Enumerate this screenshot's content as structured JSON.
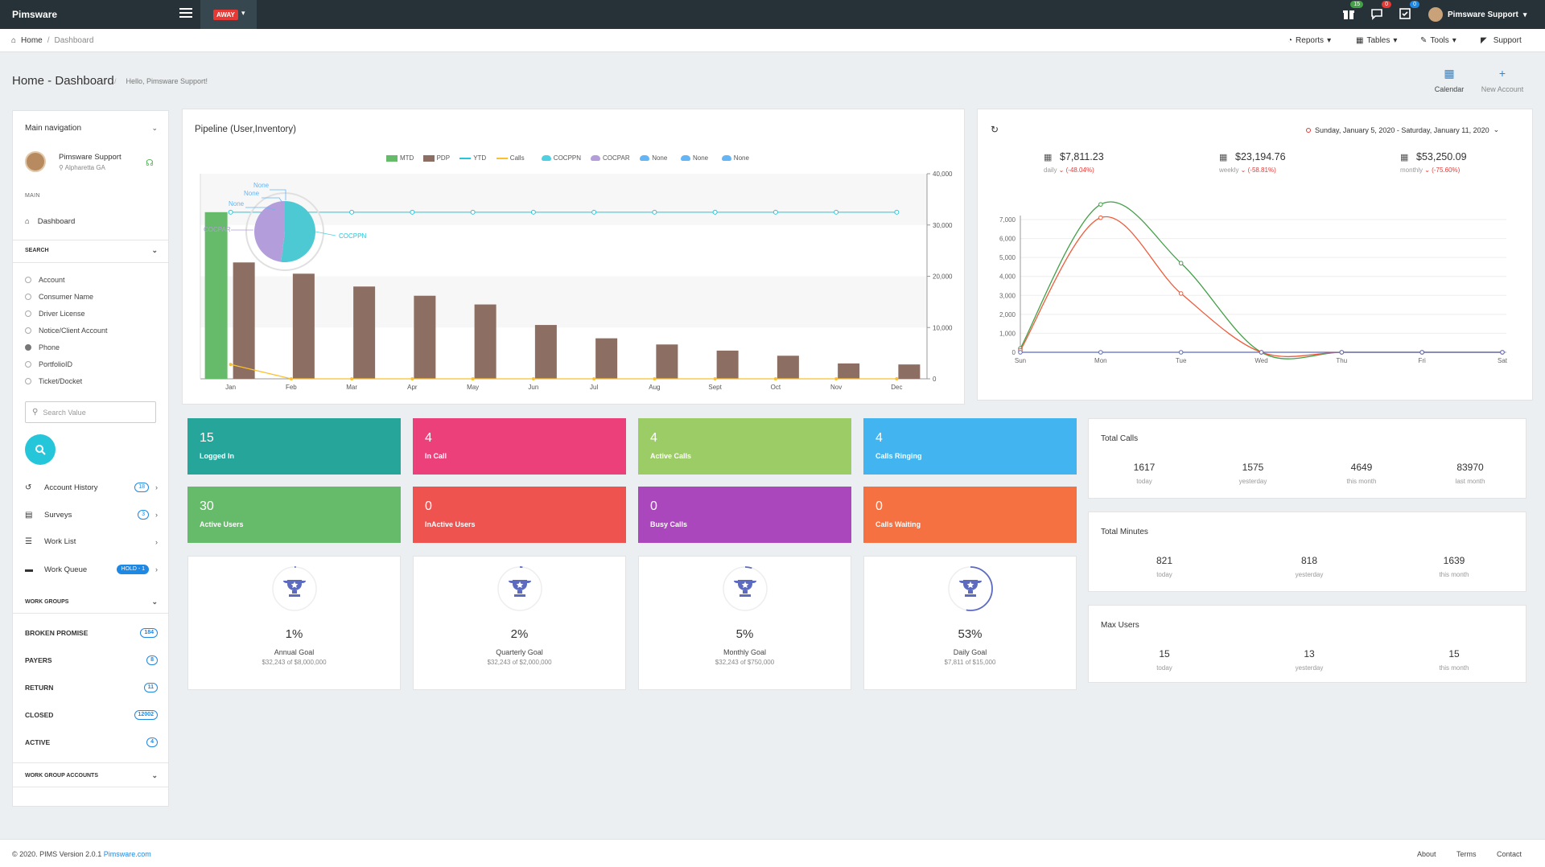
{
  "app": {
    "brand": "Pimsware",
    "status": "AWAY"
  },
  "topbar": {
    "notifications": [
      {
        "icon": "gift-icon",
        "count": "15",
        "color": "#43a047"
      },
      {
        "icon": "chat-icon",
        "count": "0",
        "color": "#e53935"
      },
      {
        "icon": "task-icon",
        "count": "0",
        "color": "#1e88e5"
      }
    ],
    "user": "Pimsware Support"
  },
  "breadcrumb": {
    "home": "Home",
    "current": "Dashboard"
  },
  "topmenu": {
    "reports": "Reports",
    "tables": "Tables",
    "tools": "Tools",
    "support": "Support"
  },
  "page": {
    "title_main": "Home",
    "title_sep": " - ",
    "title_sub": "Dashboard",
    "greeting": "Hello, Pimsware Support!",
    "calendar": "Calendar",
    "new_account": "New Account"
  },
  "sidebar": {
    "main_nav": "Main navigation",
    "user_name": "Pimsware Support",
    "user_location": "Alpharetta GA",
    "section_main": "MAIN",
    "dashboard": "Dashboard",
    "search": "SEARCH",
    "search_options": [
      "Account",
      "Consumer Name",
      "Driver License",
      "Notice/Client Account",
      "Phone",
      "PortfolioID",
      "Ticket/Docket"
    ],
    "selected_option": "Phone",
    "search_placeholder": "Search Value",
    "nav": [
      {
        "label": "Account History",
        "badge": "18",
        "icon": "history-icon"
      },
      {
        "label": "Surveys",
        "badge": "3",
        "icon": "clipboard-icon"
      },
      {
        "label": "Work List",
        "badge": "",
        "icon": "list-icon"
      },
      {
        "label": "Work Queue",
        "badge": "HOLD - 1",
        "icon": "folder-icon"
      }
    ],
    "work_groups": "WORK GROUPS",
    "groups": [
      {
        "label": "BROKEN PROMISE",
        "count": "184"
      },
      {
        "label": "PAYERS",
        "count": "8"
      },
      {
        "label": "RETURN",
        "count": "11"
      },
      {
        "label": "CLOSED",
        "count": "12002"
      },
      {
        "label": "ACTIVE",
        "count": "4"
      }
    ],
    "work_group_accounts": "WORK GROUP ACCOUNTS"
  },
  "pipeline": {
    "title": "Pipeline (User,Inventory)",
    "legend": [
      {
        "name": "MTD",
        "color": "#66bb6a",
        "shape": "rect"
      },
      {
        "name": "PDP",
        "color": "#8d6e63",
        "shape": "rect"
      },
      {
        "name": "YTD",
        "color": "#26c6da",
        "shape": "line"
      },
      {
        "name": "Calls",
        "color": "#fbc02d",
        "shape": "line"
      },
      {
        "name": "COCPPN",
        "color": "#4dd0e1",
        "shape": "blob"
      },
      {
        "name": "COCPAR",
        "color": "#b39ddb",
        "shape": "blob"
      },
      {
        "name": "None",
        "color": "#64b5f6",
        "shape": "blob"
      },
      {
        "name": "None",
        "color": "#64b5f6",
        "shape": "blob"
      },
      {
        "name": "None",
        "color": "#64b5f6",
        "shape": "blob"
      }
    ],
    "pie_labels": [
      "None",
      "None",
      "None",
      "COCPAR",
      "COCPPN"
    ]
  },
  "revenue": {
    "range": "Sunday, January 5, 2020 - Saturday, January 11, 2020",
    "items": [
      {
        "amount": "$7,811.23",
        "period": "daily",
        "change": "(-48.04%)"
      },
      {
        "amount": "$23,194.76",
        "period": "weekly",
        "change": "(-58.81%)"
      },
      {
        "amount": "$53,250.09",
        "period": "monthly",
        "change": "(-75.60%)"
      }
    ]
  },
  "tiles": [
    {
      "value": "15",
      "label": "Logged In",
      "color": "#26a69a"
    },
    {
      "value": "4",
      "label": "In Call",
      "color": "#ec407a"
    },
    {
      "value": "4",
      "label": "Active Calls",
      "color": "#9ccc65"
    },
    {
      "value": "4",
      "label": "Calls Ringing",
      "color": "#42b4f0"
    },
    {
      "value": "30",
      "label": "Active Users",
      "color": "#66bb6a"
    },
    {
      "value": "0",
      "label": "InActive Users",
      "color": "#ef5350"
    },
    {
      "value": "0",
      "label": "Busy Calls",
      "color": "#ab47bc"
    },
    {
      "value": "0",
      "label": "Calls Waiting",
      "color": "#f57142"
    }
  ],
  "goals": [
    {
      "pct": "1%",
      "fraction": 0.01,
      "label": "Annual Goal",
      "sub": "$32,243 of $8,000,000"
    },
    {
      "pct": "2%",
      "fraction": 0.02,
      "label": "Quarterly Goal",
      "sub": "$32,243 of $2,000,000"
    },
    {
      "pct": "5%",
      "fraction": 0.05,
      "label": "Monthly Goal",
      "sub": "$32,243 of $750,000"
    },
    {
      "pct": "53%",
      "fraction": 0.53,
      "label": "Daily Goal",
      "sub": "$7,811 of $15,000"
    }
  ],
  "stats": [
    {
      "title": "Total Calls",
      "cols": [
        {
          "v": "1617",
          "k": "today"
        },
        {
          "v": "1575",
          "k": "yesterday"
        },
        {
          "v": "4649",
          "k": "this month"
        },
        {
          "v": "83970",
          "k": "last month"
        }
      ]
    },
    {
      "title": "Total Minutes",
      "cols": [
        {
          "v": "821",
          "k": "today"
        },
        {
          "v": "818",
          "k": "yesterday"
        },
        {
          "v": "1639",
          "k": "this month"
        }
      ]
    },
    {
      "title": "Max Users",
      "cols": [
        {
          "v": "15",
          "k": "today"
        },
        {
          "v": "13",
          "k": "yesterday"
        },
        {
          "v": "15",
          "k": "this month"
        }
      ]
    }
  ],
  "footer": {
    "copy": "© 2020. PIMS Version 2.0.1",
    "link": "Pimsware.com",
    "about": "About",
    "terms": "Terms",
    "contact": "Contact"
  },
  "chart_data": [
    {
      "type": "bar",
      "categories": [
        "Jan",
        "Feb",
        "Mar",
        "Apr",
        "May",
        "Jun",
        "Jul",
        "Aug",
        "Sept",
        "Oct",
        "Nov",
        "Dec"
      ],
      "series": [
        {
          "name": "MTD",
          "values": [
            32500,
            0,
            0,
            0,
            0,
            0,
            0,
            0,
            0,
            0,
            0,
            0
          ]
        },
        {
          "name": "PDP",
          "values": [
            22700,
            20500,
            18000,
            16200,
            14500,
            10500,
            7900,
            6700,
            5500,
            4500,
            3000,
            2800
          ]
        },
        {
          "name": "YTD",
          "values": [
            32500,
            32500,
            32500,
            32500,
            32500,
            32500,
            32500,
            32500,
            32500,
            32500,
            32500,
            32500
          ]
        },
        {
          "name": "Calls",
          "values": [
            2800,
            0,
            0,
            0,
            0,
            0,
            0,
            0,
            0,
            0,
            0,
            0
          ]
        }
      ],
      "ylim": [
        0,
        40000
      ],
      "yticks": [
        "0",
        "10,000",
        "20,000",
        "30,000",
        "40,000"
      ],
      "pie": [
        {
          "name": "COCPPN",
          "value": 52
        },
        {
          "name": "COCPAR",
          "value": 48
        }
      ]
    },
    {
      "type": "line",
      "categories": [
        "Sun",
        "Mon",
        "Tue",
        "Wed",
        "Thu",
        "Fri",
        "Sat"
      ],
      "series": [
        {
          "values": [
            200,
            7800,
            4700,
            0,
            0,
            0,
            0
          ],
          "color": "#43a047"
        },
        {
          "values": [
            100,
            7100,
            3100,
            0,
            0,
            0,
            0
          ],
          "color": "#ef5a3a"
        },
        {
          "values": [
            0,
            0,
            0,
            0,
            0,
            0,
            0
          ],
          "color": "#5c6bc0"
        }
      ],
      "ylim": [
        0,
        7000
      ],
      "yticks": [
        "0",
        "1,000",
        "2,000",
        "3,000",
        "4,000",
        "5,000",
        "6,000",
        "7,000"
      ]
    }
  ]
}
